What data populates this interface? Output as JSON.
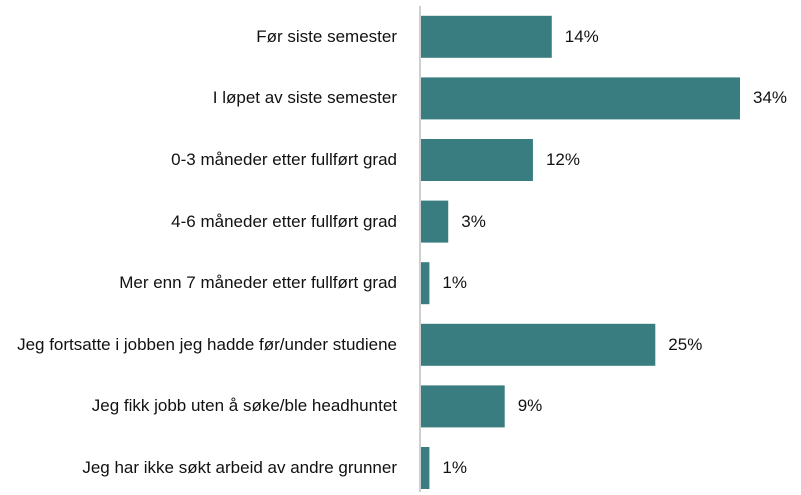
{
  "chart_data": {
    "type": "bar",
    "orientation": "horizontal",
    "categories": [
      "Før siste semester",
      "I løpet av siste semester",
      "0-3 måneder etter fullført grad",
      "4-6 måneder etter fullført grad",
      "Mer enn 7 måneder etter fullført grad",
      "Jeg fortsatte i jobben jeg hadde før/under studiene",
      "Jeg fikk jobb uten å søke/ble headhuntet",
      "Jeg har ikke søkt arbeid av andre grunner"
    ],
    "values": [
      14,
      34,
      12,
      3,
      1,
      25,
      9,
      1
    ],
    "value_labels": [
      "14%",
      "34%",
      "12%",
      "3%",
      "1%",
      "25%",
      "9%",
      "1%"
    ],
    "color": "#3a7d80"
  }
}
